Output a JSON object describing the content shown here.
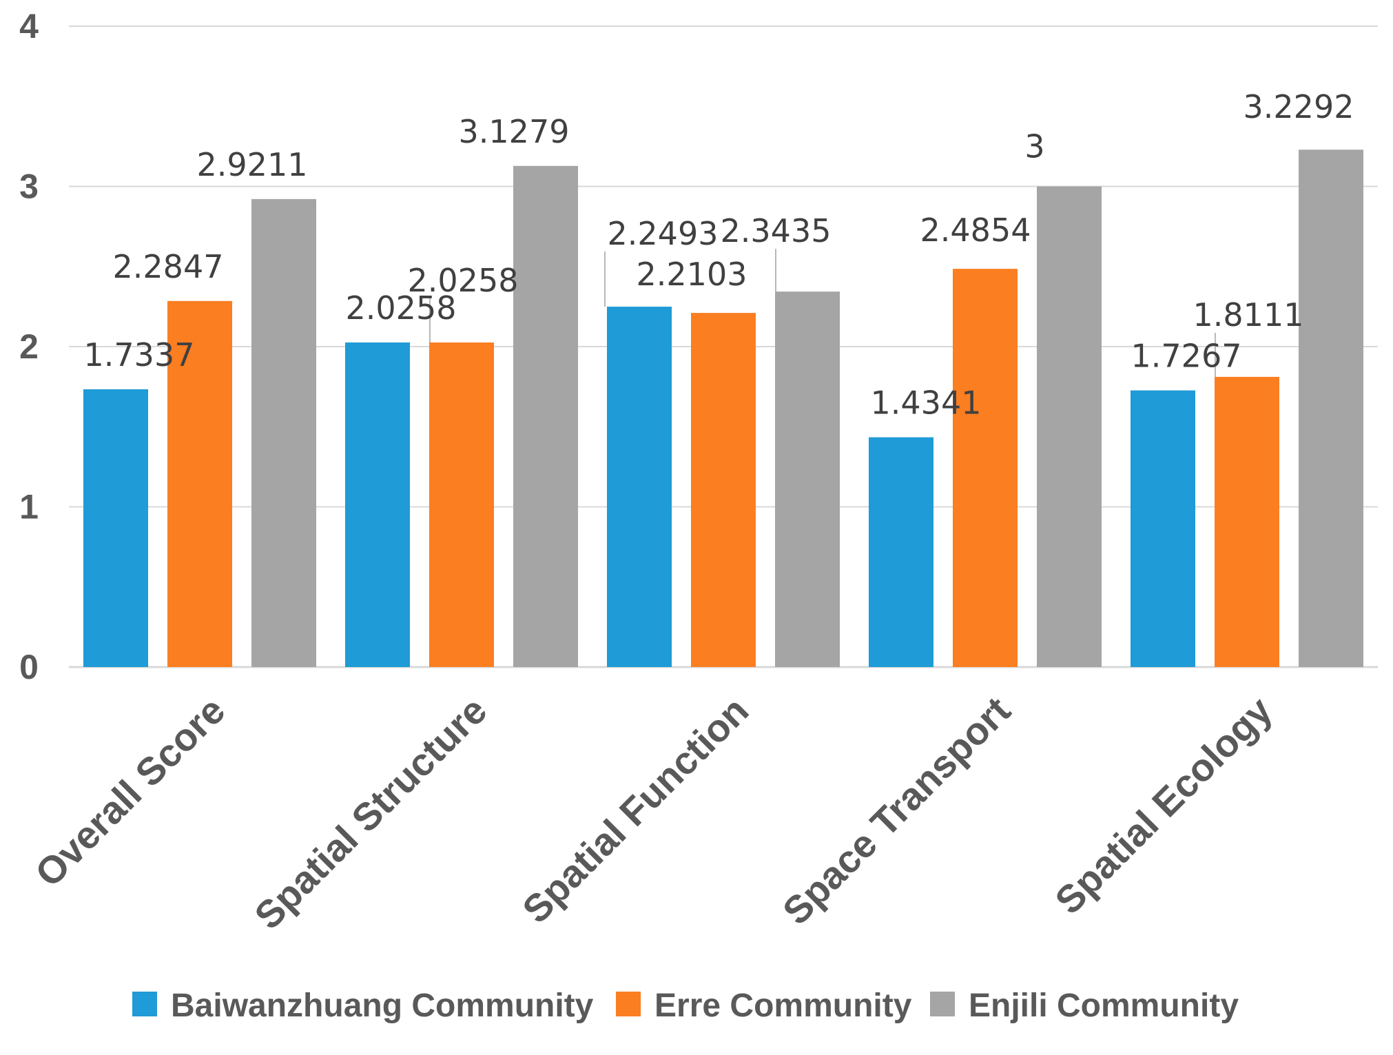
{
  "chart_data": {
    "type": "bar",
    "title": "",
    "xlabel": "",
    "ylabel": "",
    "ylim": [
      0,
      4
    ],
    "yticks": [
      0,
      1,
      2,
      3,
      4
    ],
    "grid": true,
    "legend_position": "bottom-center",
    "categories": [
      "Overall Score",
      "Spatial Structure",
      "Spatial Function",
      "Space Transport",
      "Spatial Ecology"
    ],
    "series": [
      {
        "name": "Baiwanzhuang Community",
        "color": "#1f9bd7",
        "values": [
          1.7337,
          2.0258,
          2.2493,
          1.4341,
          1.7267
        ],
        "labels": [
          "1.7337",
          "2.0258",
          "2.2493",
          "1.4341",
          "1.7267"
        ]
      },
      {
        "name": "Erre Community",
        "color": "#fb7e21",
        "values": [
          2.2847,
          2.0258,
          2.2103,
          2.4854,
          1.8111
        ],
        "labels": [
          "2.2847",
          "2.0258",
          "2.2103",
          "2.4854",
          "1.8111"
        ]
      },
      {
        "name": "Enjili Community",
        "color": "#a5a5a5",
        "values": [
          2.9211,
          3.1279,
          2.3435,
          3,
          3.2292
        ],
        "labels": [
          "2.9211",
          "3.1279",
          "2.3435",
          "3",
          "3.2292"
        ]
      }
    ]
  }
}
